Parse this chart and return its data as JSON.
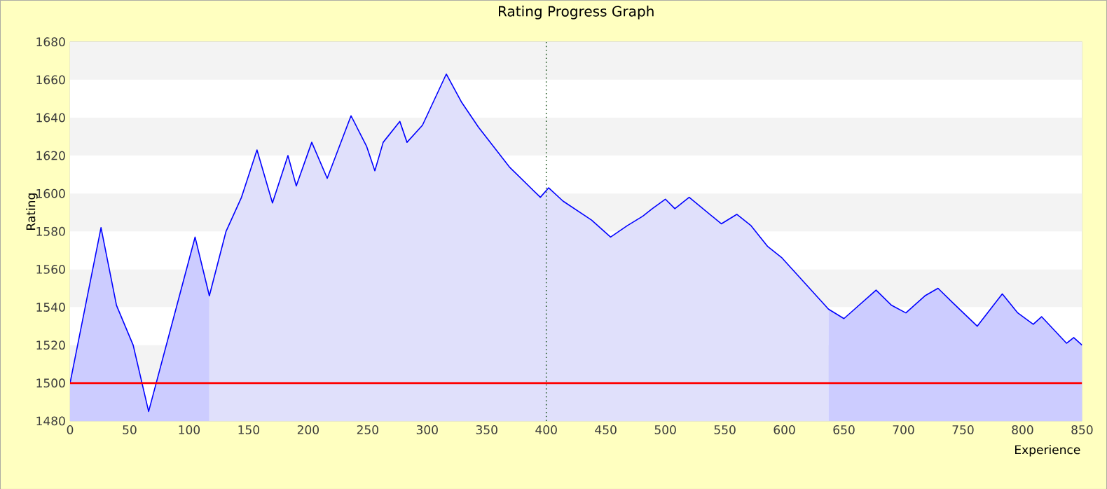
{
  "chart_data": {
    "type": "area",
    "title": "Rating Progress Graph",
    "xlabel": "Experience",
    "ylabel": "Rating",
    "xlim": [
      0,
      850
    ],
    "ylim": [
      1480,
      1680
    ],
    "xticks": [
      0,
      50,
      100,
      150,
      200,
      250,
      300,
      350,
      400,
      450,
      500,
      550,
      600,
      650,
      700,
      750,
      800,
      850
    ],
    "yticks": [
      1480,
      1500,
      1520,
      1540,
      1560,
      1580,
      1600,
      1620,
      1640,
      1660,
      1680
    ],
    "grid": "y",
    "series": [
      {
        "color": "#ccccff",
        "x": [
          0,
          26,
          39,
          53,
          66,
          105,
          117
        ],
        "values": [
          1500,
          1582,
          1541,
          1520,
          1485,
          1577,
          1546
        ]
      },
      {
        "color": "#e0e0fb",
        "x": [
          117,
          131,
          144,
          157,
          170,
          183,
          190,
          203,
          216,
          236,
          249,
          256,
          263,
          277,
          283,
          296,
          316,
          329,
          343,
          369,
          395,
          402,
          414,
          438,
          454,
          468,
          481,
          489,
          500,
          508,
          520,
          547,
          560,
          572,
          586,
          598,
          637
        ],
        "values": [
          1546,
          1580,
          1598,
          1623,
          1595,
          1620,
          1604,
          1627,
          1608,
          1641,
          1625,
          1612,
          1627,
          1638,
          1627,
          1636,
          1663,
          1648,
          1635,
          1614,
          1598,
          1603,
          1596,
          1586,
          1577,
          1583,
          1588,
          1592,
          1597,
          1592,
          1598,
          1584,
          1589,
          1583,
          1572,
          1566,
          1539
        ]
      },
      {
        "color": "#ccccff",
        "x": [
          637,
          650,
          677,
          690,
          702,
          718,
          729,
          742,
          762,
          783,
          796,
          809,
          816,
          837,
          843,
          850
        ],
        "values": [
          1539,
          1534,
          1549,
          1541,
          1537,
          1546,
          1550,
          1542,
          1530,
          1547,
          1537,
          1531,
          1535,
          1521,
          1524,
          1520
        ]
      },
      {
        "type": "line",
        "color": "#0000ff",
        "x": [
          0,
          26,
          39,
          53,
          66,
          105,
          117,
          131,
          144,
          157,
          170,
          183,
          190,
          203,
          216,
          236,
          249,
          256,
          263,
          277,
          283,
          296,
          316,
          329,
          343,
          369,
          395,
          402,
          414,
          438,
          454,
          468,
          481,
          489,
          500,
          508,
          520,
          547,
          560,
          572,
          586,
          598,
          637,
          650,
          677,
          690,
          702,
          718,
          729,
          742,
          762,
          783,
          796,
          809,
          816,
          837,
          843,
          850
        ],
        "values": [
          1500,
          1582,
          1541,
          1520,
          1485,
          1577,
          1546,
          1580,
          1598,
          1623,
          1595,
          1620,
          1604,
          1627,
          1608,
          1641,
          1625,
          1612,
          1627,
          1638,
          1627,
          1636,
          1663,
          1648,
          1635,
          1614,
          1598,
          1603,
          1596,
          1586,
          1577,
          1583,
          1588,
          1592,
          1597,
          1592,
          1598,
          1584,
          1589,
          1583,
          1572,
          1566,
          1539,
          1534,
          1549,
          1541,
          1537,
          1546,
          1550,
          1542,
          1530,
          1547,
          1537,
          1531,
          1535,
          1521,
          1524,
          1520
        ]
      }
    ],
    "ref_lines": [
      {
        "axis": "y",
        "value": 1500,
        "color": "#ff0000",
        "line_style": "solid"
      },
      {
        "axis": "x",
        "value": 400,
        "color": "#004000",
        "line_style": "dotted"
      }
    ]
  }
}
